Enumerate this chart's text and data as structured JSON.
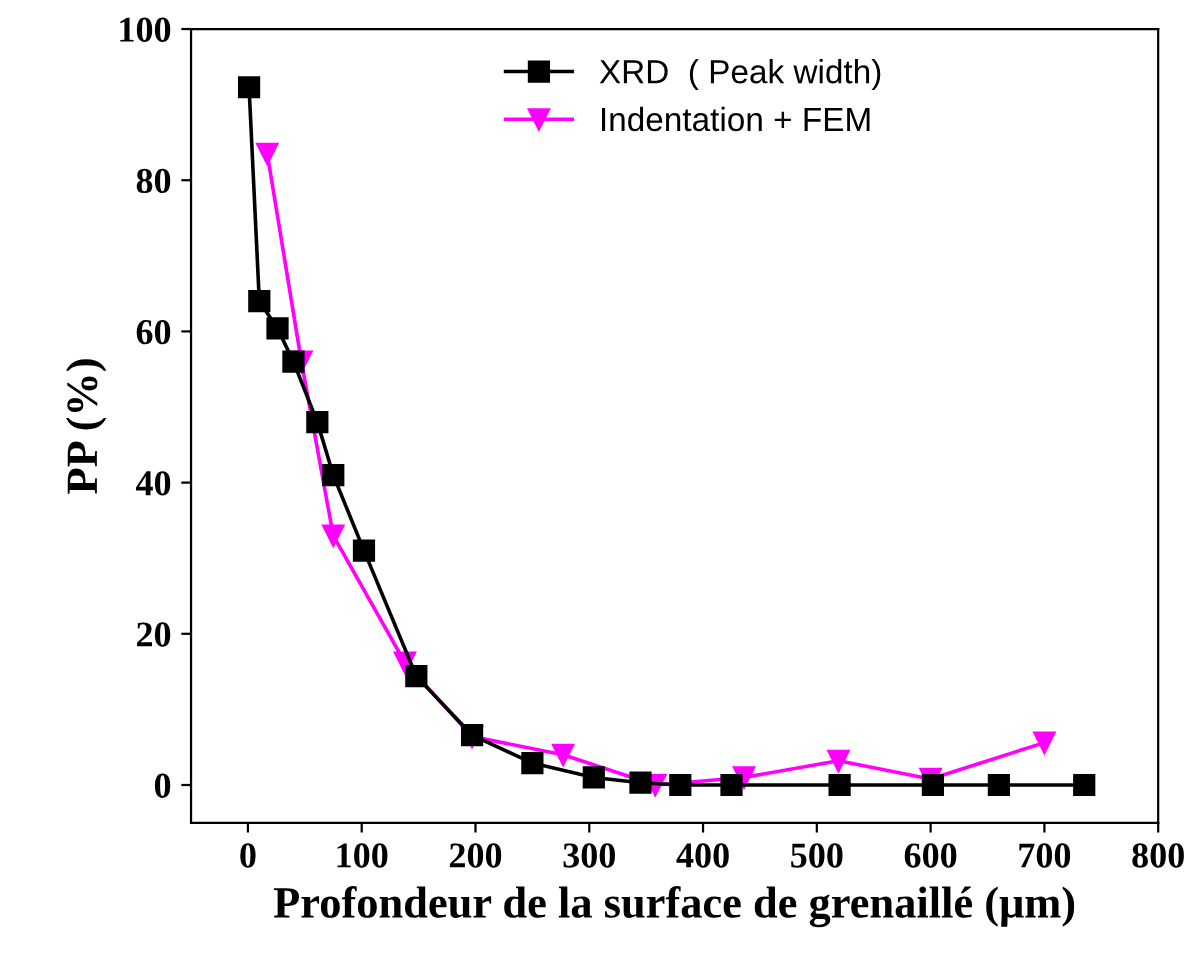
{
  "chart_data": {
    "type": "line",
    "xlabel": "Profondeur de la surface de grenaillé (μm)",
    "ylabel": "PP (%)",
    "xlim": [
      -50,
      800
    ],
    "ylim": [
      -5,
      100
    ],
    "xticks": [
      0,
      100,
      200,
      300,
      400,
      500,
      600,
      700,
      800
    ],
    "yticks": [
      0,
      20,
      40,
      60,
      80,
      100
    ],
    "grid": false,
    "legend": "top right",
    "line_style": "solid",
    "series": [
      {
        "name": "XRD  ( Peak width)",
        "color": "#000000",
        "marker": "square",
        "x": [
          1,
          10,
          26,
          40,
          61,
          75,
          102,
          148,
          197,
          250,
          304,
          345,
          380,
          425,
          520,
          602,
          660,
          735
        ],
        "values": [
          92.3,
          64,
          60.4,
          56,
          48,
          41,
          31,
          14.4,
          6.6,
          2.9,
          1,
          0.3,
          0,
          0,
          0,
          0,
          0,
          0
        ]
      },
      {
        "name": "Indentation + FEM",
        "color": "#ff00ff",
        "marker": "triangle",
        "x": [
          17,
          47,
          75,
          138,
          197,
          277,
          358,
          436,
          519,
          600,
          700
        ],
        "values": [
          83.5,
          56,
          33,
          16.2,
          6.4,
          4,
          0,
          1,
          3.2,
          0.8,
          5.6
        ]
      }
    ]
  }
}
